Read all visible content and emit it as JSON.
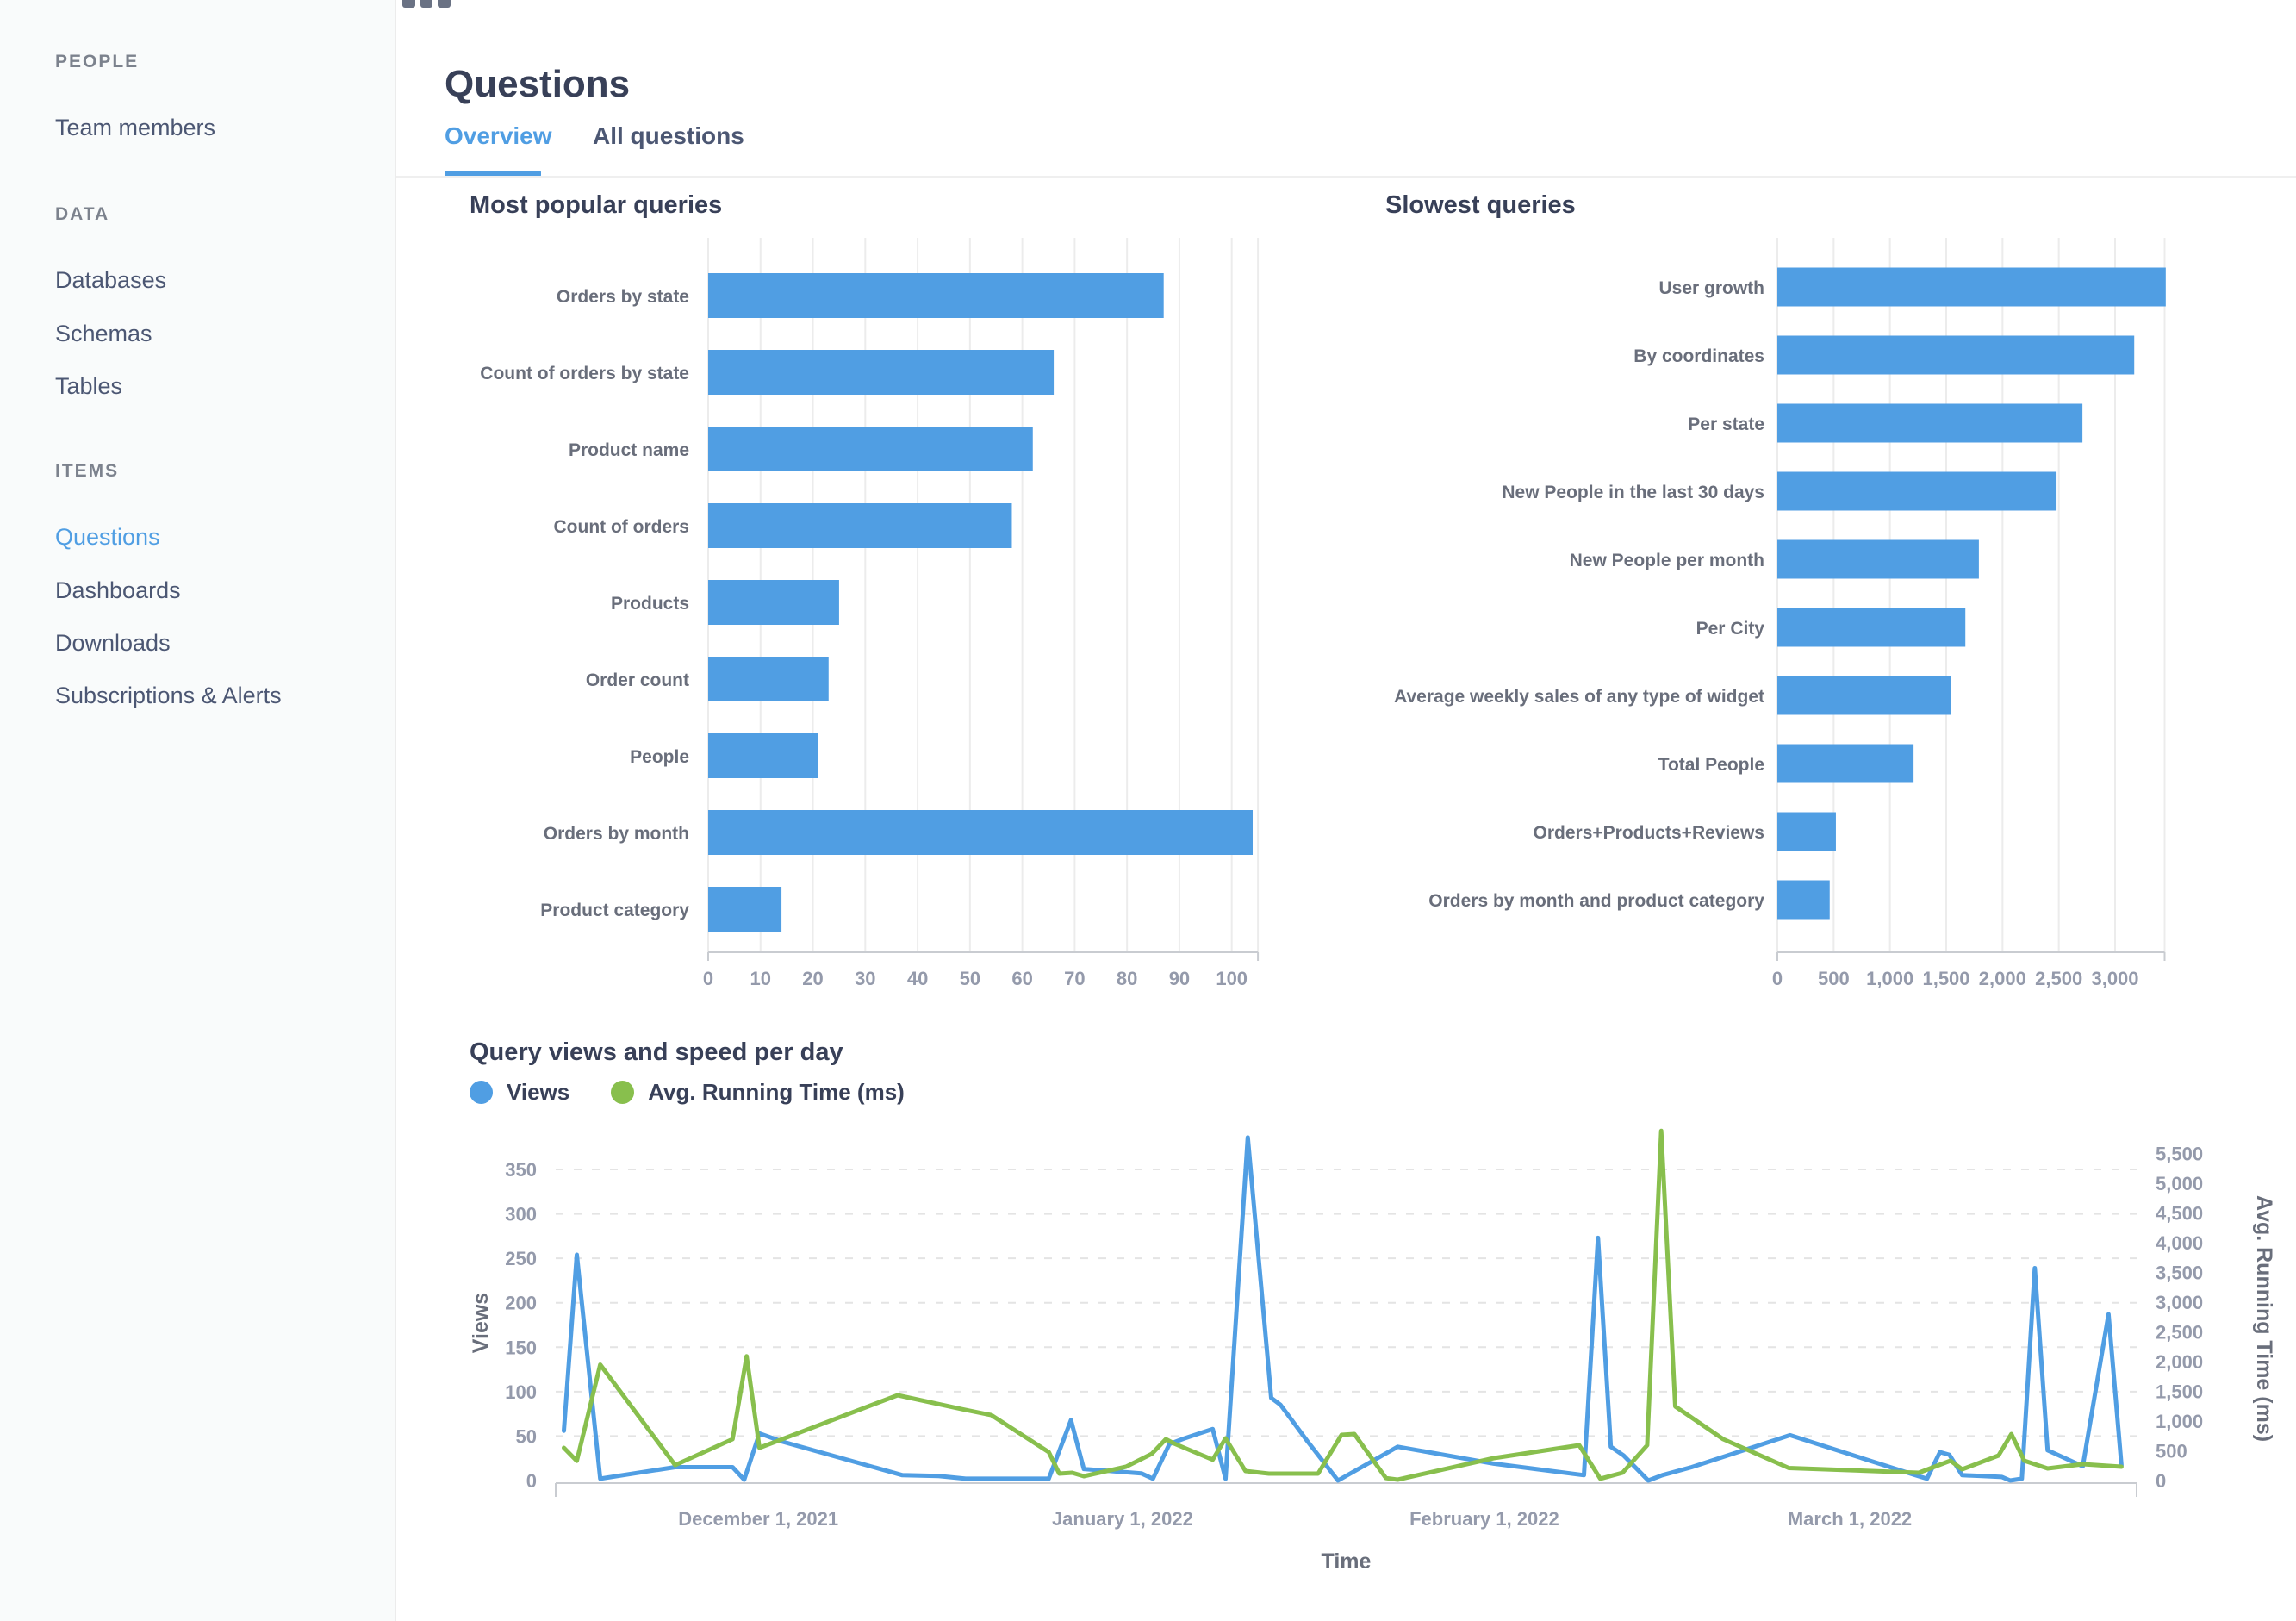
{
  "sidebar": {
    "sections": [
      {
        "header": "PEOPLE",
        "items": [
          {
            "label": "Team members",
            "active": false
          }
        ]
      },
      {
        "header": "DATA",
        "items": [
          {
            "label": "Databases",
            "active": false
          },
          {
            "label": "Schemas",
            "active": false
          },
          {
            "label": "Tables",
            "active": false
          }
        ]
      },
      {
        "header": "ITEMS",
        "items": [
          {
            "label": "Questions",
            "active": true
          },
          {
            "label": "Dashboards",
            "active": false
          },
          {
            "label": "Downloads",
            "active": false
          },
          {
            "label": "Subscriptions & Alerts",
            "active": false
          }
        ]
      }
    ]
  },
  "header": {
    "title": "Questions",
    "tabs": [
      {
        "label": "Overview",
        "active": true
      },
      {
        "label": "All questions",
        "active": false
      }
    ]
  },
  "colors": {
    "brand_blue": "#509EE3",
    "green": "#88BF4D",
    "text_dark": "#384058",
    "label_grey": "#696E7B",
    "tick_grey": "#949AAB",
    "grid": "#ECECEC",
    "axis": "#C9CCD1",
    "sidebar_bg": "#F9FBFB"
  },
  "chart_data": [
    {
      "type": "bar",
      "orientation": "horizontal",
      "title": "Most popular queries",
      "categories": [
        "Orders by state",
        "Count of orders by state",
        "Product name",
        "Count of orders",
        "Products",
        "Order count",
        "People",
        "Orders by month",
        "Product category"
      ],
      "values": [
        87,
        66,
        62,
        58,
        25,
        23,
        21,
        104,
        14
      ],
      "xticks": [
        0,
        10,
        20,
        30,
        40,
        50,
        60,
        70,
        80,
        90,
        100
      ],
      "xlim": [
        0,
        105
      ],
      "grid": true
    },
    {
      "type": "bar",
      "orientation": "horizontal",
      "title": "Slowest queries",
      "categories": [
        "User growth",
        "By coordinates",
        "Per state",
        "New People in the last 30 days",
        "New People per month",
        "Per City",
        "Average weekly sales of any type of widget",
        "Total People",
        "Orders+Products+Reviews",
        "Orders by month and product category"
      ],
      "values": [
        3450,
        3170,
        2710,
        2480,
        1790,
        1670,
        1545,
        1210,
        520,
        465
      ],
      "xticks": [
        0,
        500,
        1000,
        1500,
        2000,
        2500,
        3000
      ],
      "xlim": [
        0,
        3440
      ],
      "tick_format": "thousands",
      "grid": true
    },
    {
      "type": "line",
      "title": "Query views and speed per day",
      "xlabel": "Time",
      "ylabel_left": "Views",
      "ylabel_right": "Avg. Running Time (ms)",
      "yticks_left": [
        0,
        50,
        100,
        150,
        200,
        250,
        300,
        350
      ],
      "yticks_right": [
        0,
        500,
        1000,
        1500,
        2000,
        2500,
        3000,
        3500,
        4000,
        4500,
        5000,
        5500
      ],
      "ylim_left": [
        0,
        386
      ],
      "ylim_right": [
        0,
        5880
      ],
      "x_domain_days": [
        0,
        135
      ],
      "month_ticks": [
        {
          "day": 17.3,
          "label": "December 1, 2021"
        },
        {
          "day": 48.4,
          "label": "January 1, 2022"
        },
        {
          "day": 79.3,
          "label": "February 1, 2022"
        },
        {
          "day": 110.5,
          "label": "March 1, 2022"
        }
      ],
      "series": [
        {
          "name": "Views",
          "color": "#509EE3",
          "axis": "left",
          "points": [
            [
              0.7,
              56
            ],
            [
              1.8,
              254
            ],
            [
              3.8,
              2
            ],
            [
              7.2,
              9
            ],
            [
              10.2,
              15
            ],
            [
              15.1,
              15
            ],
            [
              16.1,
              1
            ],
            [
              17.4,
              53
            ],
            [
              19.3,
              44
            ],
            [
              29.6,
              6
            ],
            [
              32.7,
              5
            ],
            [
              35.0,
              2
            ],
            [
              42.1,
              2
            ],
            [
              44.0,
              68
            ],
            [
              45.1,
              13
            ],
            [
              50.0,
              8
            ],
            [
              51.0,
              2
            ],
            [
              52.4,
              41
            ],
            [
              53.6,
              47
            ],
            [
              56.1,
              58
            ],
            [
              57.2,
              2
            ],
            [
              59.1,
              386
            ],
            [
              61.1,
              93
            ],
            [
              61.9,
              85
            ],
            [
              64.2,
              44
            ],
            [
              66.8,
              0
            ],
            [
              71.9,
              38
            ],
            [
              80.1,
              19
            ],
            [
              87.8,
              6
            ],
            [
              89.0,
              273
            ],
            [
              90.1,
              38
            ],
            [
              91.2,
              28
            ],
            [
              93.3,
              0
            ],
            [
              94.5,
              6
            ],
            [
              97.0,
              15
            ],
            [
              105.4,
              51
            ],
            [
              116.1,
              6
            ],
            [
              117.1,
              2
            ],
            [
              118.2,
              32
            ],
            [
              119.0,
              29
            ],
            [
              120.1,
              6
            ],
            [
              121.8,
              5
            ],
            [
              123.5,
              4
            ],
            [
              124.2,
              0
            ],
            [
              125.2,
              2
            ],
            [
              126.3,
              239
            ],
            [
              127.4,
              34
            ],
            [
              130.4,
              16
            ],
            [
              132.6,
              187
            ],
            [
              133.7,
              17
            ]
          ]
        },
        {
          "name": "Avg. Running Time (ms)",
          "color": "#88BF4D",
          "axis": "right",
          "points": [
            [
              0.7,
              550
            ],
            [
              1.8,
              330
            ],
            [
              3.8,
              1950
            ],
            [
              10.2,
              260
            ],
            [
              15.1,
              695
            ],
            [
              16.3,
              2090
            ],
            [
              17.4,
              550
            ],
            [
              29.2,
              1435
            ],
            [
              34.7,
              1200
            ],
            [
              37.2,
              1100
            ],
            [
              42.1,
              478
            ],
            [
              43.0,
              116
            ],
            [
              44.1,
              130
            ],
            [
              45.1,
              72
            ],
            [
              48.7,
              232
            ],
            [
              50.9,
              450
            ],
            [
              52.1,
              695
            ],
            [
              52.8,
              623
            ],
            [
              56.1,
              350
            ],
            [
              57.2,
              710
            ],
            [
              58.9,
              159
            ],
            [
              60.9,
              116
            ],
            [
              65.1,
              116
            ],
            [
              67.1,
              768
            ],
            [
              68.2,
              782
            ],
            [
              70.9,
              40
            ],
            [
              71.9,
              15
            ],
            [
              80.1,
              377
            ],
            [
              87.4,
              594
            ],
            [
              89.2,
              30
            ],
            [
              91.1,
              130
            ],
            [
              93.2,
              594
            ],
            [
              94.4,
              5880
            ],
            [
              95.6,
              1246
            ],
            [
              99.7,
              695
            ],
            [
              105.3,
              210
            ],
            [
              116.4,
              130
            ],
            [
              119.1,
              333
            ],
            [
              120.1,
              188
            ],
            [
              123.2,
              420
            ],
            [
              124.3,
              783
            ],
            [
              125.4,
              333
            ],
            [
              127.4,
              203
            ],
            [
              130.4,
              275
            ],
            [
              133.7,
              232
            ]
          ]
        }
      ]
    }
  ]
}
